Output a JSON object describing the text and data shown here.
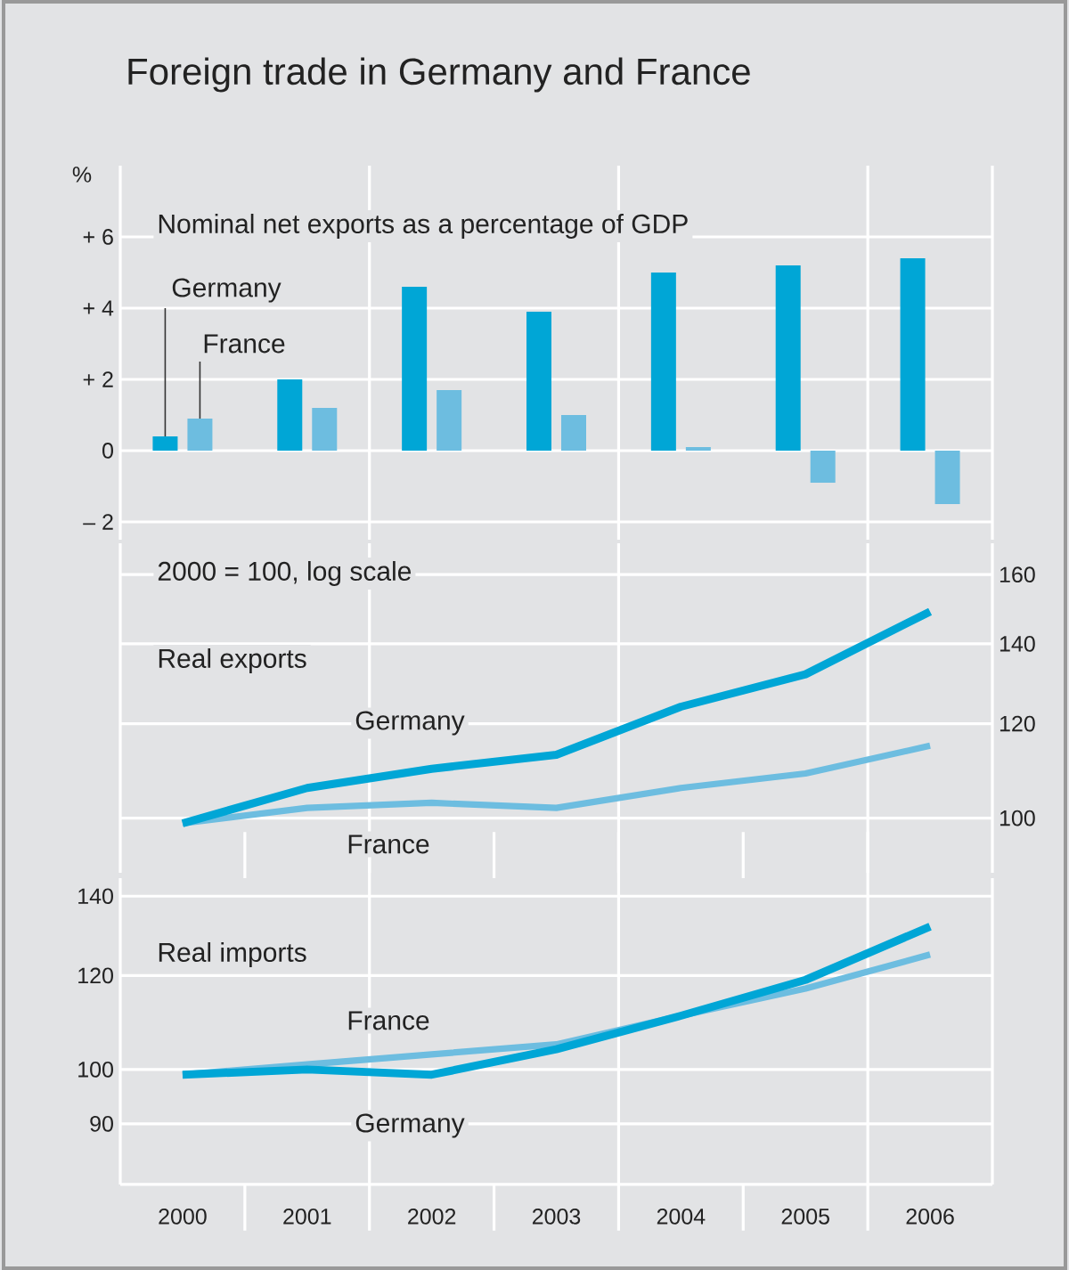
{
  "chart_data": [
    {
      "type": "bar",
      "title": "Foreign trade in Germany and France",
      "subtitle": "Nominal net exports as a percentage of GDP",
      "ylabel": "%",
      "categories": [
        "2000",
        "2001",
        "2002",
        "2003",
        "2004",
        "2005",
        "2006"
      ],
      "series": [
        {
          "name": "Germany",
          "color": "#00a6d6",
          "values": [
            0.4,
            2.0,
            4.6,
            3.9,
            5.0,
            5.2,
            5.4
          ]
        },
        {
          "name": "France",
          "color": "#6dbde0",
          "values": [
            0.9,
            1.2,
            1.7,
            1.0,
            0.1,
            -0.9,
            -1.5
          ]
        }
      ],
      "ylim": [
        -2.5,
        8
      ],
      "yticks": [
        {
          "value": -2,
          "label": "– 2"
        },
        0,
        {
          "value": 2,
          "label": "+ 2"
        },
        {
          "value": 4,
          "label": "+ 4"
        },
        {
          "value": 6,
          "label": "+ 6"
        }
      ],
      "grid": true,
      "tick_labels": "y"
    },
    {
      "type": "line",
      "title": "Real exports",
      "subtitle": "2000 = 100, log scale",
      "categories": [
        "2000",
        "2001",
        "2002",
        "2003",
        "2004",
        "2005",
        "2006"
      ],
      "series": [
        {
          "name": "Germany",
          "color": "#00a6d6",
          "values": [
            99,
            106,
            110,
            113,
            124,
            132,
            149
          ]
        },
        {
          "name": "France",
          "color": "#6dbde0",
          "values": [
            99,
            102,
            103,
            102,
            106,
            109,
            115
          ]
        }
      ],
      "ylim": [
        90,
        170
      ],
      "yticks": [
        100,
        120,
        140,
        160
      ],
      "log": true,
      "grid": true,
      "tick_labels": "y"
    },
    {
      "type": "line",
      "title": "Real imports",
      "categories": [
        "2000",
        "2001",
        "2002",
        "2003",
        "2004",
        "2005",
        "2006"
      ],
      "series": [
        {
          "name": "Germany",
          "color": "#00a6d6",
          "values": [
            99,
            100,
            99,
            104,
            111,
            119,
            132
          ]
        },
        {
          "name": "France",
          "color": "#6dbde0",
          "values": [
            99,
            101,
            103,
            105,
            111,
            117,
            125
          ]
        }
      ],
      "ylim": [
        80,
        145
      ],
      "yticks": [
        90,
        100,
        120,
        140
      ],
      "log": true,
      "grid": true
    }
  ]
}
